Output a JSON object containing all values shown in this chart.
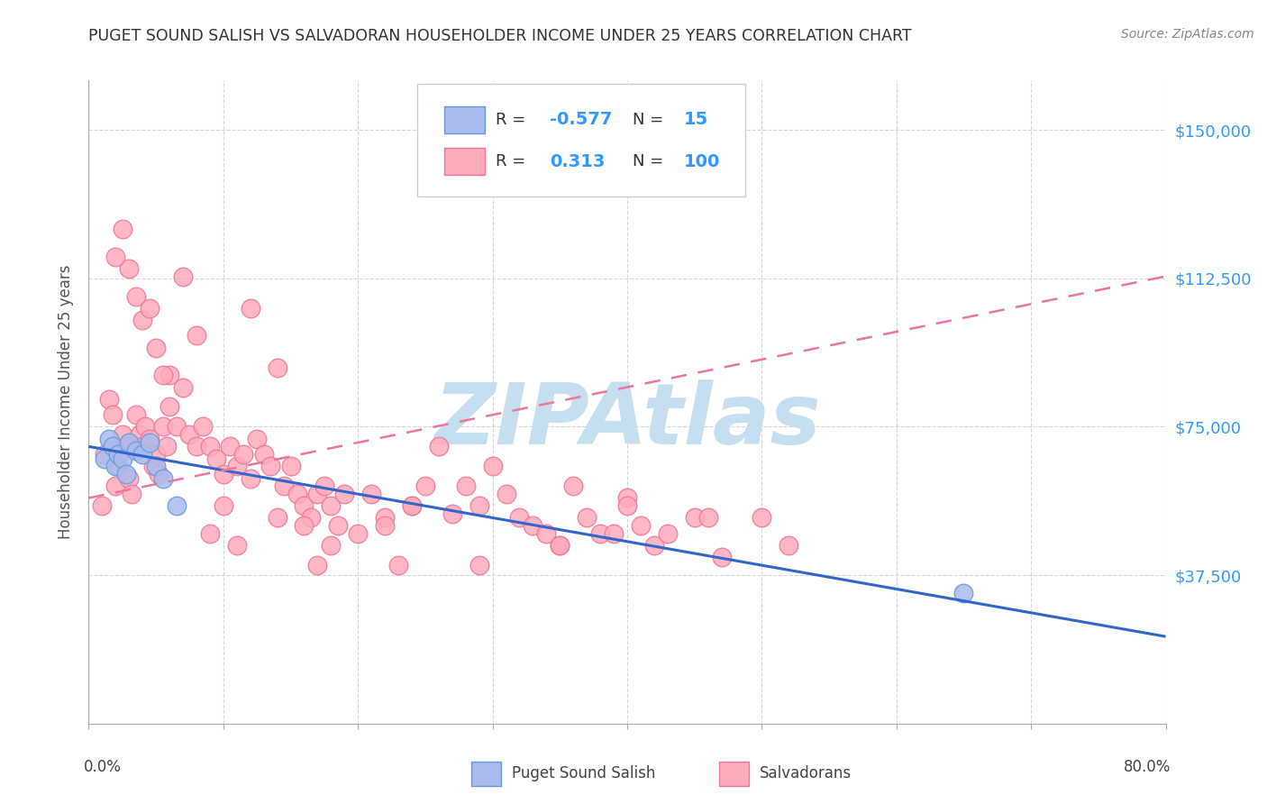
{
  "title": "PUGET SOUND SALISH VS SALVADORAN HOUSEHOLDER INCOME UNDER 25 YEARS CORRELATION CHART",
  "source": "Source: ZipAtlas.com",
  "ylabel": "Householder Income Under 25 years",
  "xlim": [
    0.0,
    80.0
  ],
  "ylim": [
    0,
    162500
  ],
  "ytick_labels": [
    "$37,500",
    "$75,000",
    "$112,500",
    "$150,000"
  ],
  "ytick_values": [
    37500,
    75000,
    112500,
    150000
  ],
  "legend_label1": "Puget Sound Salish",
  "legend_label2": "Salvadorans",
  "blue_fill": "#aabbee",
  "blue_edge": "#6699dd",
  "pink_fill": "#ffaabb",
  "pink_edge": "#ee7799",
  "blue_line_color": "#3366cc",
  "pink_line_color": "#ee7799",
  "watermark": "ZIPAtlas",
  "watermark_color": "#c5dff0",
  "background_color": "#ffffff",
  "grid_color": "#cccccc",
  "title_color": "#333333",
  "axis_label_color": "#555555",
  "right_tick_color": "#3399ff",
  "salish_x": [
    1.2,
    1.5,
    1.8,
    2.0,
    2.2,
    2.5,
    2.8,
    3.0,
    3.5,
    4.0,
    4.5,
    5.0,
    5.5,
    6.5,
    65.0
  ],
  "salish_y": [
    67000,
    72000,
    70000,
    65000,
    68000,
    67000,
    63000,
    71000,
    69000,
    68000,
    71000,
    65000,
    62000,
    55000,
    33000
  ],
  "salvadoran_x": [
    1.0,
    1.2,
    1.5,
    1.8,
    2.0,
    2.2,
    2.5,
    2.8,
    3.0,
    3.2,
    3.5,
    3.8,
    4.0,
    4.2,
    4.5,
    4.8,
    5.0,
    5.2,
    5.5,
    5.8,
    6.0,
    6.5,
    7.0,
    7.5,
    8.0,
    8.5,
    9.0,
    9.5,
    10.0,
    10.5,
    11.0,
    11.5,
    12.0,
    12.5,
    13.0,
    13.5,
    14.0,
    14.5,
    15.0,
    15.5,
    16.0,
    16.5,
    17.0,
    17.5,
    18.0,
    18.5,
    19.0,
    20.0,
    21.0,
    22.0,
    23.0,
    24.0,
    25.0,
    26.0,
    27.0,
    28.0,
    29.0,
    30.0,
    31.0,
    32.0,
    33.0,
    34.0,
    35.0,
    36.0,
    37.0,
    38.0,
    39.0,
    40.0,
    41.0,
    42.0,
    43.0,
    45.0,
    47.0,
    50.0,
    52.0,
    3.0,
    4.0,
    5.0,
    6.0,
    2.0,
    3.5,
    2.5,
    7.0,
    8.0,
    4.5,
    5.5,
    9.0,
    10.0,
    11.0,
    16.0,
    17.0,
    18.0,
    14.0,
    12.0,
    22.0,
    35.0,
    40.0,
    46.0,
    29.0,
    24.0
  ],
  "salvadoran_y": [
    55000,
    68000,
    82000,
    78000,
    60000,
    65000,
    73000,
    70000,
    62000,
    58000,
    78000,
    73000,
    70000,
    75000,
    72000,
    65000,
    68000,
    63000,
    75000,
    70000,
    80000,
    75000,
    85000,
    73000,
    70000,
    75000,
    70000,
    67000,
    63000,
    70000,
    65000,
    68000,
    62000,
    72000,
    68000,
    65000,
    52000,
    60000,
    65000,
    58000,
    55000,
    52000,
    58000,
    60000,
    55000,
    50000,
    58000,
    48000,
    58000,
    52000,
    40000,
    55000,
    60000,
    70000,
    53000,
    60000,
    55000,
    65000,
    58000,
    52000,
    50000,
    48000,
    45000,
    60000,
    52000,
    48000,
    48000,
    57000,
    50000,
    45000,
    48000,
    52000,
    42000,
    52000,
    45000,
    115000,
    102000,
    95000,
    88000,
    118000,
    108000,
    125000,
    113000,
    98000,
    105000,
    88000,
    48000,
    55000,
    45000,
    50000,
    40000,
    45000,
    90000,
    105000,
    50000,
    45000,
    55000,
    52000,
    40000,
    55000
  ],
  "blue_trend": [
    70000,
    22000
  ],
  "pink_trend": [
    57000,
    113000
  ]
}
